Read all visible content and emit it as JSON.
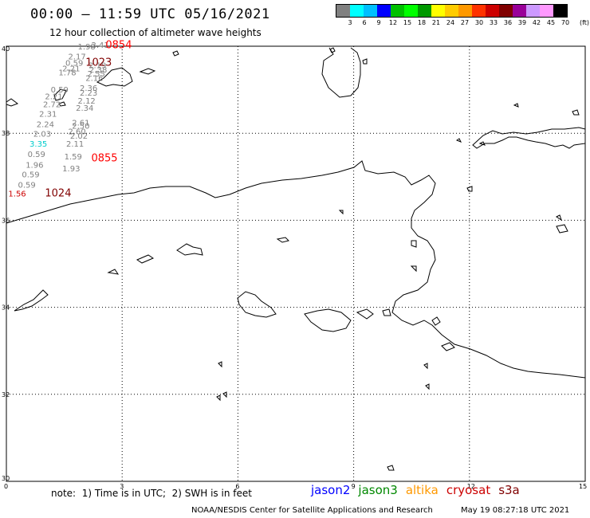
{
  "title": "00:00 – 11:59 UTC 05/16/2021",
  "subtitle": "12 hour collection of altimeter wave heights",
  "colorbar": {
    "unit": "(ft)",
    "colors": [
      "#808080",
      "#00ffff",
      "#00bfff",
      "#0000ff",
      "#00c000",
      "#00ff00",
      "#009900",
      "#ffff00",
      "#ffcc00",
      "#ff9900",
      "#ff3300",
      "#cc0000",
      "#800000",
      "#990099",
      "#cc99ff",
      "#ff99ff",
      "#000000"
    ],
    "labels": [
      "3",
      "6",
      "9",
      "12",
      "15",
      "18",
      "21",
      "24",
      "27",
      "30",
      "33",
      "36",
      "39",
      "42",
      "45",
      "70"
    ]
  },
  "axes": {
    "lat_labels": [
      "40",
      "38",
      "36",
      "34",
      "32",
      "30"
    ],
    "lon_labels": [
      "0",
      "3",
      "6",
      "9",
      "12",
      "15"
    ]
  },
  "observations": [
    {
      "text": "2.41",
      "lon": 2.2,
      "lat": 39.96,
      "color": "#808080"
    },
    {
      "text": "1.98",
      "lon": 1.85,
      "lat": 39.93,
      "color": "#808080"
    },
    {
      "text": "2.17",
      "lon": 1.6,
      "lat": 39.7,
      "color": "#808080"
    },
    {
      "text": "0.59",
      "lon": 1.53,
      "lat": 39.55,
      "color": "#808080"
    },
    {
      "text": "2.21",
      "lon": 1.45,
      "lat": 39.42,
      "color": "#808080"
    },
    {
      "text": "2.19",
      "lon": 2.13,
      "lat": 39.5,
      "color": "#808080"
    },
    {
      "text": "2.38",
      "lon": 2.15,
      "lat": 39.4,
      "color": "#808080"
    },
    {
      "text": "1.78",
      "lon": 1.35,
      "lat": 39.33,
      "color": "#808080"
    },
    {
      "text": "2.55",
      "lon": 2.1,
      "lat": 39.3,
      "color": "#808080"
    },
    {
      "text": "2.16",
      "lon": 2.05,
      "lat": 39.2,
      "color": "#808080"
    },
    {
      "text": "0.59",
      "lon": 1.15,
      "lat": 38.94,
      "color": "#808080"
    },
    {
      "text": "2.36",
      "lon": 1.9,
      "lat": 38.97,
      "color": "#808080"
    },
    {
      "text": "2.23",
      "lon": 1.9,
      "lat": 38.86,
      "color": "#808080"
    },
    {
      "text": "2.21",
      "lon": 1.0,
      "lat": 38.78,
      "color": "#808080"
    },
    {
      "text": "2.12",
      "lon": 1.85,
      "lat": 38.68,
      "color": "#808080"
    },
    {
      "text": "2.72",
      "lon": 0.95,
      "lat": 38.6,
      "color": "#808080"
    },
    {
      "text": "2.34",
      "lon": 1.8,
      "lat": 38.52,
      "color": "#808080"
    },
    {
      "text": "2.31",
      "lon": 0.85,
      "lat": 38.38,
      "color": "#808080"
    },
    {
      "text": "2.24",
      "lon": 0.78,
      "lat": 38.14,
      "color": "#808080"
    },
    {
      "text": "2.61",
      "lon": 1.7,
      "lat": 38.18,
      "color": "#808080"
    },
    {
      "text": "2.50",
      "lon": 1.7,
      "lat": 38.1,
      "color": "#808080"
    },
    {
      "text": "2.60",
      "lon": 1.6,
      "lat": 37.98,
      "color": "#808080"
    },
    {
      "text": "2.03",
      "lon": 0.7,
      "lat": 37.92,
      "color": "#808080"
    },
    {
      "text": "2.02",
      "lon": 1.65,
      "lat": 37.88,
      "color": "#808080"
    },
    {
      "text": "3.35",
      "lon": 0.6,
      "lat": 37.69,
      "color": "#00cccc"
    },
    {
      "text": "2.11",
      "lon": 1.55,
      "lat": 37.69,
      "color": "#808080"
    },
    {
      "text": "0.59",
      "lon": 0.55,
      "lat": 37.45,
      "color": "#808080"
    },
    {
      "text": "1.59",
      "lon": 1.5,
      "lat": 37.4,
      "color": "#808080"
    },
    {
      "text": "1.96",
      "lon": 0.5,
      "lat": 37.21,
      "color": "#808080"
    },
    {
      "text": "1.93",
      "lon": 1.45,
      "lat": 37.12,
      "color": "#808080"
    },
    {
      "text": "0.59",
      "lon": 0.4,
      "lat": 36.99,
      "color": "#808080"
    },
    {
      "text": "0.59",
      "lon": 0.3,
      "lat": 36.75,
      "color": "#808080"
    },
    {
      "text": "1.56",
      "lon": 0.05,
      "lat": 36.55,
      "color": "#cc0000"
    }
  ],
  "passes": [
    {
      "text": "0854",
      "lon": 2.57,
      "lat": 39.95,
      "color": "#ff0000"
    },
    {
      "text": "1023",
      "lon": 2.05,
      "lat": 39.55,
      "color": "#800000"
    },
    {
      "text": "0855",
      "lon": 2.2,
      "lat": 37.35,
      "color": "#ff0000"
    },
    {
      "text": "1024",
      "lon": 1.0,
      "lat": 36.55,
      "color": "#800000"
    }
  ],
  "note": "note:  1) Time is in UTC;  2) SWH is in feet",
  "legend": [
    {
      "name": "jason2",
      "color": "#0000ff"
    },
    {
      "name": "jason3",
      "color": "#008800"
    },
    {
      "name": "altika",
      "color": "#ff9900"
    },
    {
      "name": "cryosat",
      "color": "#cc0000"
    },
    {
      "name": "s3a",
      "color": "#800000"
    }
  ],
  "footer": "NOAA/NESDIS Center for Satellite Applications and Research",
  "footer_date": "May 19 08:27:18 UTC 2021"
}
